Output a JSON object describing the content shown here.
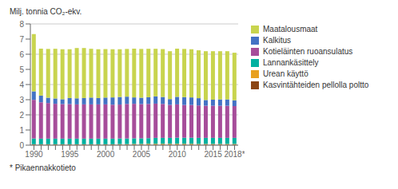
{
  "chart_data": {
    "type": "bar",
    "stacked": true,
    "grid": true,
    "legend": "right",
    "ylabel": "Milj. tonnia CO₂-ekv.",
    "annotations": [
      "* Pikaennakkotieto"
    ],
    "categories": [
      "1990",
      null,
      null,
      null,
      null,
      "1995",
      null,
      null,
      null,
      null,
      "2000",
      null,
      null,
      null,
      null,
      "2005",
      null,
      null,
      null,
      null,
      "2010",
      null,
      null,
      null,
      null,
      "2015",
      null,
      null,
      "2018*"
    ],
    "series": [
      {
        "name": "Kasvintähteiden pellolla poltto",
        "color": "#8b4513",
        "values": [
          0.03,
          0.03,
          0.03,
          0.03,
          0.03,
          0.03,
          0.03,
          0.03,
          0.03,
          0.03,
          0.03,
          0.03,
          0.03,
          0.03,
          0.03,
          0.03,
          0.03,
          0.03,
          0.03,
          0.03,
          0.03,
          0.03,
          0.03,
          0.03,
          0.03,
          0.03,
          0.03,
          0.03,
          0.03
        ]
      },
      {
        "name": "Urean käyttö",
        "color": "#e8a020",
        "values": [
          0.03,
          0.03,
          0.03,
          0.03,
          0.03,
          0.03,
          0.03,
          0.03,
          0.03,
          0.03,
          0.03,
          0.03,
          0.04,
          0.04,
          0.05,
          0.05,
          0.06,
          0.06,
          0.06,
          0.06,
          0.06,
          0.06,
          0.06,
          0.05,
          0.05,
          0.05,
          0.05,
          0.05,
          0.05
        ]
      },
      {
        "name": "Lannankäsittely",
        "color": "#00b0a0",
        "values": [
          0.38,
          0.37,
          0.37,
          0.37,
          0.37,
          0.37,
          0.37,
          0.37,
          0.37,
          0.37,
          0.37,
          0.37,
          0.37,
          0.37,
          0.37,
          0.37,
          0.37,
          0.39,
          0.39,
          0.39,
          0.4,
          0.4,
          0.4,
          0.4,
          0.4,
          0.4,
          0.4,
          0.4,
          0.4
        ]
      },
      {
        "name": "Kotieläinten ruoansulatus",
        "color": "#a64d9a",
        "values": [
          2.55,
          2.4,
          2.35,
          2.3,
          2.28,
          2.28,
          2.26,
          2.26,
          2.26,
          2.26,
          2.26,
          2.24,
          2.24,
          2.28,
          2.28,
          2.26,
          2.26,
          2.26,
          2.24,
          2.18,
          2.2,
          2.16,
          2.16,
          2.14,
          2.12,
          2.12,
          2.12,
          2.12,
          2.1
        ]
      },
      {
        "name": "Kalkitus",
        "color": "#4472c4",
        "values": [
          0.56,
          0.44,
          0.35,
          0.35,
          0.32,
          0.4,
          0.4,
          0.42,
          0.45,
          0.42,
          0.45,
          0.48,
          0.5,
          0.48,
          0.42,
          0.42,
          0.44,
          0.48,
          0.46,
          0.38,
          0.5,
          0.52,
          0.5,
          0.48,
          0.38,
          0.4,
          0.42,
          0.42,
          0.38
        ]
      },
      {
        "name": "Maatalousmaat",
        "color": "#c8d44e",
        "values": [
          3.78,
          3.1,
          3.22,
          3.28,
          3.3,
          3.22,
          3.32,
          3.3,
          3.22,
          3.22,
          3.2,
          3.18,
          3.15,
          3.15,
          3.22,
          3.22,
          3.2,
          3.14,
          3.16,
          3.16,
          3.18,
          3.18,
          3.18,
          3.16,
          3.22,
          3.2,
          3.18,
          3.18,
          3.14
        ]
      }
    ],
    "ylim": [
      0,
      8
    ],
    "yticks": [
      0,
      1,
      2,
      3,
      4,
      5,
      6,
      7,
      8
    ]
  }
}
